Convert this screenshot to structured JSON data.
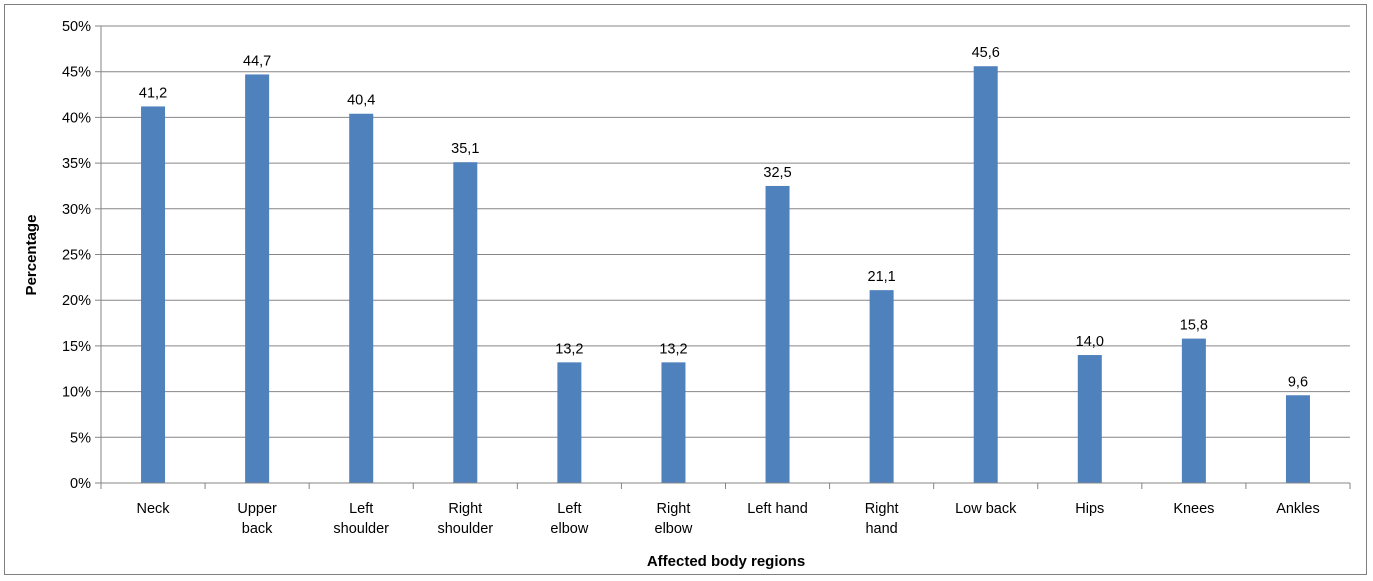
{
  "chart_data": {
    "type": "bar",
    "title": "",
    "xlabel": "Affected body regions",
    "ylabel": "Percentage",
    "categories": [
      [
        "Neck"
      ],
      [
        "Upper",
        "back"
      ],
      [
        "Left",
        "shoulder"
      ],
      [
        "Right",
        "shoulder"
      ],
      [
        "Left",
        "elbow"
      ],
      [
        "Right",
        "elbow"
      ],
      [
        "Left hand"
      ],
      [
        "Right",
        "hand"
      ],
      [
        "Low back"
      ],
      [
        "Hips"
      ],
      [
        "Knees"
      ],
      [
        "Ankles"
      ]
    ],
    "values": [
      41.2,
      44.7,
      40.4,
      35.1,
      13.2,
      13.2,
      32.5,
      21.1,
      45.6,
      14.0,
      15.8,
      9.6
    ],
    "data_labels": [
      "41,2",
      "44,7",
      "40,4",
      "35,1",
      "13,2",
      "13,2",
      "32,5",
      "21,1",
      "45,6",
      "14,0",
      "15,8",
      "9,6"
    ],
    "ylim": [
      0,
      50
    ],
    "yticks": [
      0,
      5,
      10,
      15,
      20,
      25,
      30,
      35,
      40,
      45,
      50
    ],
    "ytick_labels": [
      "0%",
      "5%",
      "10%",
      "15%",
      "20%",
      "25%",
      "30%",
      "35%",
      "40%",
      "45%",
      "50%"
    ],
    "grid": true,
    "legend": "none",
    "colors": {
      "bar": "#4f81bd",
      "grid": "#868686",
      "axis": "#868686",
      "frame": "#7f7f7f"
    }
  }
}
